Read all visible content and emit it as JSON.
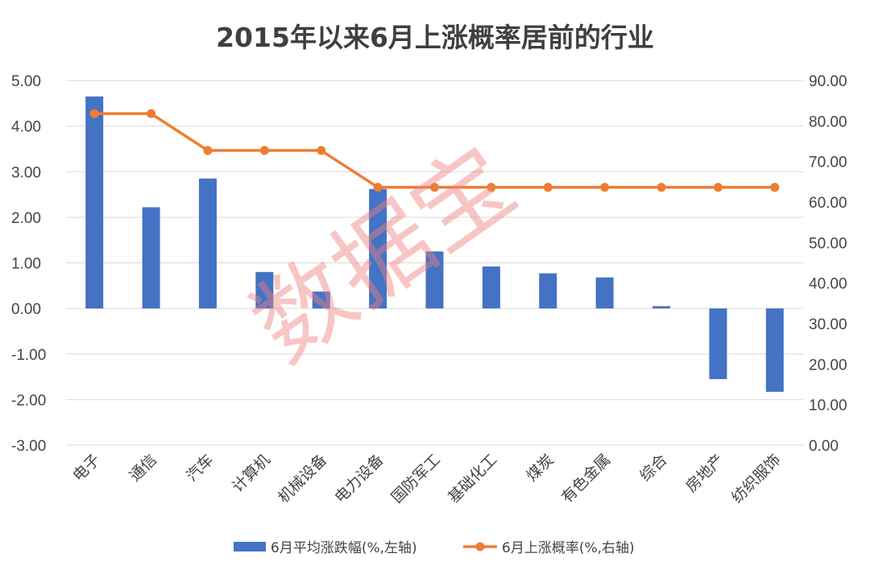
{
  "chart_data": {
    "type": "bar+line",
    "title": "2015年以来6月上涨概率居前的行业",
    "categories": [
      "电子",
      "通信",
      "汽车",
      "计算机",
      "机械设备",
      "电力设备",
      "国防军工",
      "基础化工",
      "煤炭",
      "有色金属",
      "综合",
      "房地产",
      "纺织服饰"
    ],
    "series": [
      {
        "name": "6月平均涨跌幅(%,左轴)",
        "type": "bar",
        "axis": "left",
        "color": "#4472C4",
        "values": [
          4.65,
          2.22,
          2.85,
          0.8,
          0.37,
          2.62,
          1.25,
          0.92,
          0.77,
          0.68,
          0.05,
          -1.55,
          -1.83
        ]
      },
      {
        "name": "6月上涨概率(%,右轴)",
        "type": "line",
        "axis": "right",
        "color": "#ED7D31",
        "values": [
          81.82,
          81.82,
          72.73,
          72.73,
          72.73,
          63.64,
          63.64,
          63.64,
          63.64,
          63.64,
          63.64,
          63.64,
          63.64
        ]
      }
    ],
    "y_left": {
      "min": -3,
      "max": 5,
      "step": 1,
      "ticks": [
        "5.00",
        "4.00",
        "3.00",
        "2.00",
        "1.00",
        "0.00",
        "-1.00",
        "-2.00",
        "-3.00"
      ]
    },
    "y_right": {
      "min": 0,
      "max": 90,
      "step": 10,
      "ticks": [
        "90.00",
        "80.00",
        "70.00",
        "60.00",
        "50.00",
        "40.00",
        "30.00",
        "20.00",
        "10.00",
        "0.00"
      ]
    },
    "grid": true,
    "legend_position": "bottom",
    "watermark": "数据宝"
  }
}
